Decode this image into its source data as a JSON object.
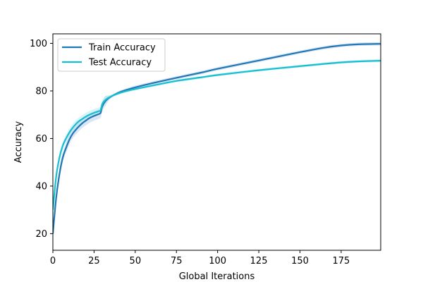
{
  "chart_data": {
    "type": "line",
    "title": "",
    "xlabel": "Global Iterations",
    "ylabel": "Accuracy",
    "xlim": [
      0,
      199
    ],
    "ylim": [
      13,
      104
    ],
    "xticks": [
      0,
      25,
      50,
      75,
      100,
      125,
      150,
      175
    ],
    "yticks": [
      20,
      40,
      60,
      80,
      100
    ],
    "legend_position": "upper-left",
    "grid": false,
    "x": [
      0,
      2,
      4,
      6,
      8,
      10,
      12,
      15,
      18,
      20,
      22,
      25,
      28,
      29,
      30,
      32,
      35,
      40,
      45,
      50,
      60,
      75,
      90,
      100,
      125,
      150,
      165,
      175,
      185,
      199
    ],
    "series": [
      {
        "name": "Train Accuracy",
        "color": "#1f77b4",
        "band_color": "#aec7e8",
        "values": [
          20,
          35,
          45,
          52,
          56,
          59.5,
          62,
          64.5,
          66.5,
          67.5,
          68.5,
          69.5,
          70.3,
          70.8,
          73.5,
          75.8,
          77.5,
          79.3,
          80.5,
          81.5,
          83.2,
          85.5,
          87.7,
          89.3,
          92.8,
          96.3,
          98.2,
          99.1,
          99.6,
          99.8
        ],
        "band": 2
      },
      {
        "name": "Test Accuracy",
        "color": "#17becf",
        "band_color": "#a8e6ef",
        "values": [
          30,
          44,
          52,
          57,
          60,
          62.5,
          64.5,
          66.8,
          68.3,
          69.2,
          69.9,
          70.8,
          71.5,
          71.9,
          74.5,
          76.3,
          77.6,
          79,
          80,
          80.8,
          82.2,
          84.2,
          85.7,
          86.7,
          88.7,
          90.4,
          91.4,
          92,
          92.4,
          92.7
        ],
        "band": 1.6
      }
    ]
  }
}
